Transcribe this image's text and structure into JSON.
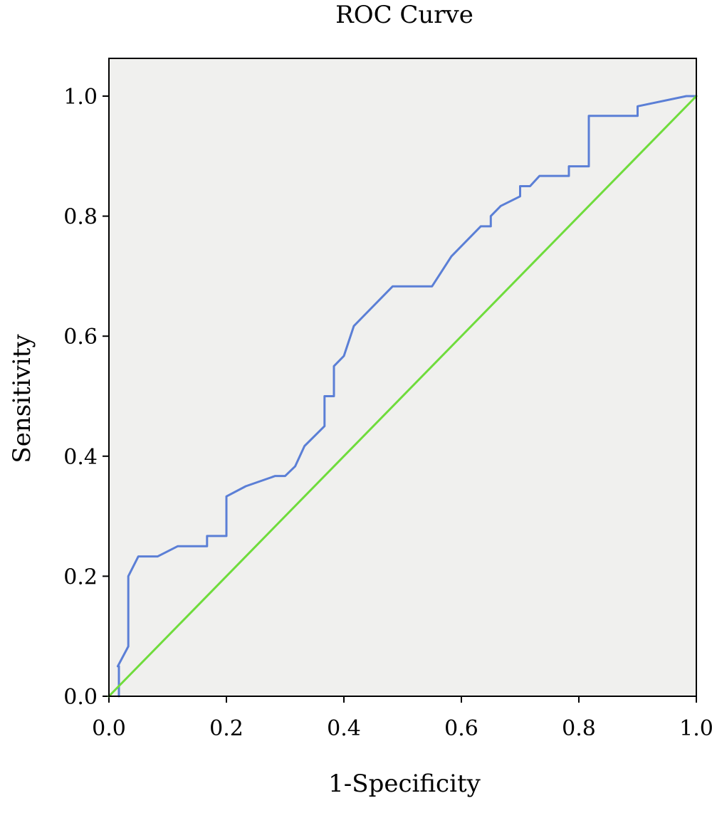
{
  "chart_data": {
    "type": "line",
    "title": "ROC Curve",
    "xlabel": "1-Specificity",
    "ylabel": "Sensitivity",
    "xlim": [
      0.0,
      1.0
    ],
    "ylim": [
      0.0,
      1.0
    ],
    "xticks": [
      "0.0",
      "0.2",
      "0.4",
      "0.6",
      "0.8",
      "1.0"
    ],
    "yticks": [
      "0.0",
      "0.2",
      "0.4",
      "0.6",
      "0.8",
      "1.0"
    ],
    "grid": false,
    "legend": "none",
    "plot_background": "#f0f0ee",
    "series": [
      {
        "color": "#5b7fd6",
        "x": [
          0.017,
          0.017,
          0.015,
          0.033,
          0.033,
          0.05,
          0.083,
          0.117,
          0.167,
          0.167,
          0.2,
          0.2,
          0.233,
          0.283,
          0.3,
          0.317,
          0.333,
          0.367,
          0.367,
          0.383,
          0.383,
          0.4,
          0.417,
          0.483,
          0.55,
          0.583,
          0.633,
          0.65,
          0.65,
          0.667,
          0.7,
          0.7,
          0.717,
          0.733,
          0.783,
          0.783,
          0.817,
          0.817,
          0.9,
          0.9,
          0.983,
          1.0
        ],
        "y": [
          0.0,
          0.05,
          0.05,
          0.083,
          0.2,
          0.233,
          0.233,
          0.25,
          0.25,
          0.267,
          0.267,
          0.333,
          0.35,
          0.367,
          0.367,
          0.383,
          0.417,
          0.45,
          0.5,
          0.5,
          0.55,
          0.567,
          0.617,
          0.683,
          0.683,
          0.733,
          0.783,
          0.783,
          0.8,
          0.817,
          0.833,
          0.85,
          0.85,
          0.867,
          0.867,
          0.883,
          0.883,
          0.967,
          0.967,
          0.983,
          1.0,
          1.0
        ]
      },
      {
        "color": "#6fdc3c",
        "x": [
          0.0,
          1.0
        ],
        "y": [
          0.0,
          1.0
        ]
      }
    ]
  }
}
